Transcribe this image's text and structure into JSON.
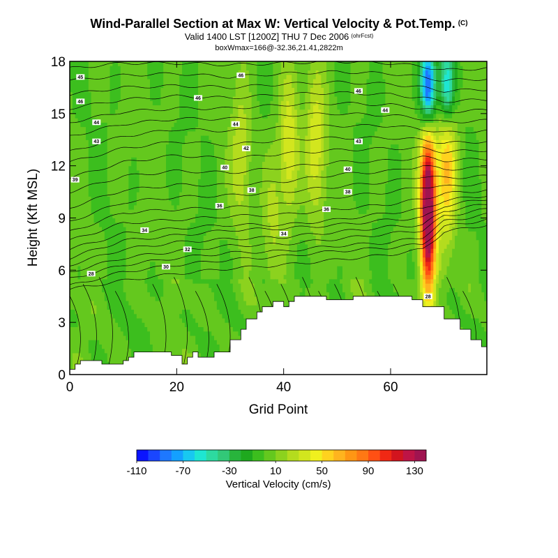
{
  "header": {
    "title": "Wind-Parallel Section at Max W: Vertical Velocity & Pot.Temp.",
    "title_tag": "(C)",
    "subtitle": "Valid 1400 LST [1200Z] THU 7 Dec 2006",
    "subtitle_tag": "(ohrFcst)",
    "subtitle2": "boxWmax=166@-32.36,21.41,2822m"
  },
  "chart_data": {
    "type": "heatmap",
    "title": "Wind-Parallel Section at Max W: Vertical Velocity & Pot.Temp.",
    "xlabel": "Grid Point",
    "ylabel": "Height (Kft MSL)",
    "xlim": [
      0,
      78
    ],
    "ylim": [
      0,
      18
    ],
    "x_ticks": [
      0,
      20,
      40,
      60
    ],
    "y_ticks": [
      0,
      3,
      6,
      9,
      12,
      15,
      18
    ],
    "colorbar": {
      "label": "Vertical Velocity (cm/s)",
      "levels_min": -110,
      "level_step": 10,
      "tick_labels": [
        "-110",
        "-70",
        "-30",
        "10",
        "50",
        "90",
        "130"
      ],
      "colors": [
        "#0a14ff",
        "#1a46ff",
        "#1e78ff",
        "#14a0ff",
        "#18c8f0",
        "#1ee6d2",
        "#2ddaa0",
        "#32c878",
        "#28b43c",
        "#1ea91e",
        "#3cbe1e",
        "#64c81e",
        "#8cd21e",
        "#b4dc1e",
        "#d2e61e",
        "#f0f01e",
        "#ffd21e",
        "#ffb41e",
        "#ff9614",
        "#ff7814",
        "#ff5014",
        "#f02814",
        "#d2141e",
        "#be1446",
        "#a01450"
      ]
    },
    "terrain": {
      "x": [
        0,
        1,
        1,
        2,
        2,
        6,
        6,
        10,
        10,
        11,
        11,
        12,
        12,
        15,
        15,
        16,
        16,
        19,
        19,
        21,
        21,
        22,
        22,
        23,
        23,
        24,
        24,
        27,
        27,
        30,
        30,
        32,
        32,
        33,
        33,
        35,
        35,
        36,
        36,
        38,
        38,
        39,
        39,
        40,
        40,
        41,
        41,
        42,
        42,
        44,
        44,
        45,
        45,
        48,
        48,
        50,
        50,
        53,
        53,
        55,
        55,
        59,
        59,
        64,
        64,
        66,
        66,
        70,
        70,
        73,
        73,
        75,
        75,
        77,
        77,
        78
      ],
      "height_kft": [
        0.3,
        0.3,
        0.6,
        0.6,
        0.8,
        0.8,
        0.6,
        0.6,
        0.8,
        0.8,
        1.0,
        1.0,
        1.3,
        1.3,
        1.3,
        1.3,
        1.3,
        1.3,
        1.1,
        1.1,
        0.6,
        0.6,
        1.0,
        1.0,
        1.3,
        1.3,
        1.0,
        1.0,
        1.3,
        1.3,
        2.0,
        2.0,
        2.6,
        2.6,
        3.2,
        3.2,
        3.6,
        3.6,
        3.9,
        3.9,
        4.2,
        4.2,
        4.2,
        4.2,
        3.9,
        3.9,
        4.2,
        4.2,
        4.5,
        4.5,
        4.5,
        4.5,
        4.5,
        4.5,
        4.3,
        4.3,
        4.3,
        4.3,
        4.5,
        4.5,
        4.5,
        4.5,
        4.5,
        4.5,
        4.3,
        4.3,
        3.9,
        3.9,
        3.2,
        3.2,
        2.6,
        2.6,
        2.0,
        2.0,
        1.6,
        1.6
      ]
    },
    "theta_contours": {
      "levels": [
        28,
        29,
        30,
        31,
        32,
        33,
        34,
        35,
        36,
        37,
        38,
        39,
        40,
        41,
        42,
        43,
        44,
        45,
        46,
        47,
        48
      ],
      "x": [
        0,
        10,
        20,
        30,
        40,
        50,
        60,
        66,
        70,
        78
      ],
      "heights_kft": [
        [
          4.9,
          5.4,
          5.8,
          6.1,
          6.3,
          6.6,
          6.9,
          7.2,
          8.2,
          8.6
        ],
        [
          5.1,
          5.9,
          6.3,
          6.6,
          6.8,
          7.1,
          7.3,
          7.5,
          8.5,
          8.9
        ],
        [
          5.5,
          6.3,
          6.7,
          7.0,
          7.1,
          7.4,
          7.6,
          7.9,
          8.8,
          9.2
        ],
        [
          5.9,
          6.7,
          7.1,
          7.4,
          7.5,
          7.8,
          8.1,
          8.3,
          9.1,
          9.5
        ],
        [
          6.3,
          7.2,
          7.6,
          7.8,
          7.9,
          8.2,
          8.5,
          8.6,
          9.4,
          9.8
        ],
        [
          6.7,
          7.7,
          8.0,
          8.3,
          8.4,
          8.6,
          8.9,
          9.0,
          9.7,
          10.1
        ],
        [
          7.2,
          8.1,
          8.4,
          8.6,
          8.6,
          8.9,
          9.3,
          9.5,
          10.0,
          10.3
        ],
        [
          7.7,
          8.7,
          8.9,
          9.1,
          9.2,
          9.5,
          9.8,
          10.1,
          10.4,
          10.6
        ],
        [
          8.2,
          9.3,
          9.5,
          9.6,
          9.8,
          10.2,
          10.5,
          10.8,
          10.8,
          11.0
        ],
        [
          8.8,
          9.9,
          10.2,
          10.3,
          10.5,
          10.8,
          11.1,
          11.4,
          11.3,
          11.4
        ],
        [
          9.6,
          10.6,
          10.9,
          10.9,
          11.1,
          11.5,
          11.7,
          12.0,
          11.8,
          11.9
        ],
        [
          10.5,
          11.4,
          11.7,
          11.6,
          11.9,
          12.2,
          12.3,
          12.5,
          12.3,
          12.4
        ],
        [
          11.3,
          12.2,
          12.6,
          12.4,
          12.7,
          12.9,
          13.0,
          13.0,
          12.8,
          12.9
        ],
        [
          12.2,
          13.0,
          13.4,
          13.2,
          13.5,
          13.6,
          13.6,
          13.5,
          13.3,
          13.4
        ],
        [
          12.8,
          13.7,
          14.1,
          14.0,
          14.2,
          14.3,
          14.3,
          14.1,
          13.9,
          14.0
        ],
        [
          13.7,
          14.4,
          14.7,
          14.7,
          14.9,
          15.0,
          14.9,
          14.7,
          14.5,
          14.6
        ],
        [
          14.5,
          15.1,
          15.3,
          15.3,
          15.5,
          15.6,
          15.5,
          15.3,
          15.1,
          15.2
        ],
        [
          15.3,
          15.8,
          16.0,
          15.9,
          16.1,
          16.2,
          16.1,
          15.9,
          15.7,
          15.8
        ],
        [
          16.1,
          16.5,
          16.6,
          16.5,
          16.7,
          16.8,
          16.7,
          16.5,
          16.3,
          16.4
        ],
        [
          16.9,
          17.2,
          17.3,
          17.1,
          17.3,
          17.4,
          17.3,
          17.1,
          16.9,
          17.0
        ],
        [
          17.6,
          17.9,
          17.9,
          17.8,
          17.9,
          18.0,
          17.9,
          17.7,
          17.5,
          17.6
        ]
      ],
      "labels": [
        {
          "text": "28",
          "x": 4,
          "y_kft": 5.8
        },
        {
          "text": "30",
          "x": 18,
          "y_kft": 6.2
        },
        {
          "text": "32",
          "x": 22,
          "y_kft": 7.2
        },
        {
          "text": "34",
          "x": 14,
          "y_kft": 8.3
        },
        {
          "text": "34",
          "x": 40,
          "y_kft": 8.1
        },
        {
          "text": "36",
          "x": 28,
          "y_kft": 9.7
        },
        {
          "text": "36",
          "x": 48,
          "y_kft": 9.5
        },
        {
          "text": "38",
          "x": 34,
          "y_kft": 10.6
        },
        {
          "text": "38",
          "x": 52,
          "y_kft": 10.5
        },
        {
          "text": "39",
          "x": 1,
          "y_kft": 11.2
        },
        {
          "text": "40",
          "x": 29,
          "y_kft": 11.9
        },
        {
          "text": "40",
          "x": 52,
          "y_kft": 11.8
        },
        {
          "text": "42",
          "x": 33,
          "y_kft": 13.0
        },
        {
          "text": "43",
          "x": 5,
          "y_kft": 13.4
        },
        {
          "text": "43",
          "x": 54,
          "y_kft": 13.4
        },
        {
          "text": "44",
          "x": 5,
          "y_kft": 14.5
        },
        {
          "text": "44",
          "x": 31,
          "y_kft": 14.4
        },
        {
          "text": "44",
          "x": 59,
          "y_kft": 15.2
        },
        {
          "text": "46",
          "x": 2,
          "y_kft": 15.7
        },
        {
          "text": "46",
          "x": 24,
          "y_kft": 15.9
        },
        {
          "text": "46",
          "x": 54,
          "y_kft": 16.3
        },
        {
          "text": "46",
          "x": 32,
          "y_kft": 17.2
        },
        {
          "text": "45",
          "x": 2,
          "y_kft": 17.1
        },
        {
          "text": "28",
          "x": 67,
          "y_kft": 4.5
        }
      ]
    },
    "vertical_velocity_features": [
      {
        "kind": "updraft",
        "x": 67,
        "y_center_kft": 9.5,
        "peak_cm_s": 166
      },
      {
        "kind": "updraft",
        "x": 70.5,
        "y_center_kft": 12,
        "peak_cm_s": 60
      },
      {
        "kind": "downdraft",
        "x": 67,
        "y_center_kft": 16.5,
        "peak_cm_s": -110
      },
      {
        "kind": "downdraft",
        "x": 70.5,
        "y_center_kft": 16.5,
        "peak_cm_s": -70
      },
      {
        "kind": "updraft",
        "x": 41,
        "y_center_kft": 13,
        "peak_cm_s": 40
      },
      {
        "kind": "updraft",
        "x": 46,
        "y_center_kft": 13,
        "peak_cm_s": 35
      },
      {
        "kind": "updraft",
        "x": 32,
        "y_center_kft": 12.5,
        "peak_cm_s": 25
      },
      {
        "kind": "updraft",
        "x": 38,
        "y_center_kft": 9,
        "peak_cm_s": 20
      }
    ]
  }
}
